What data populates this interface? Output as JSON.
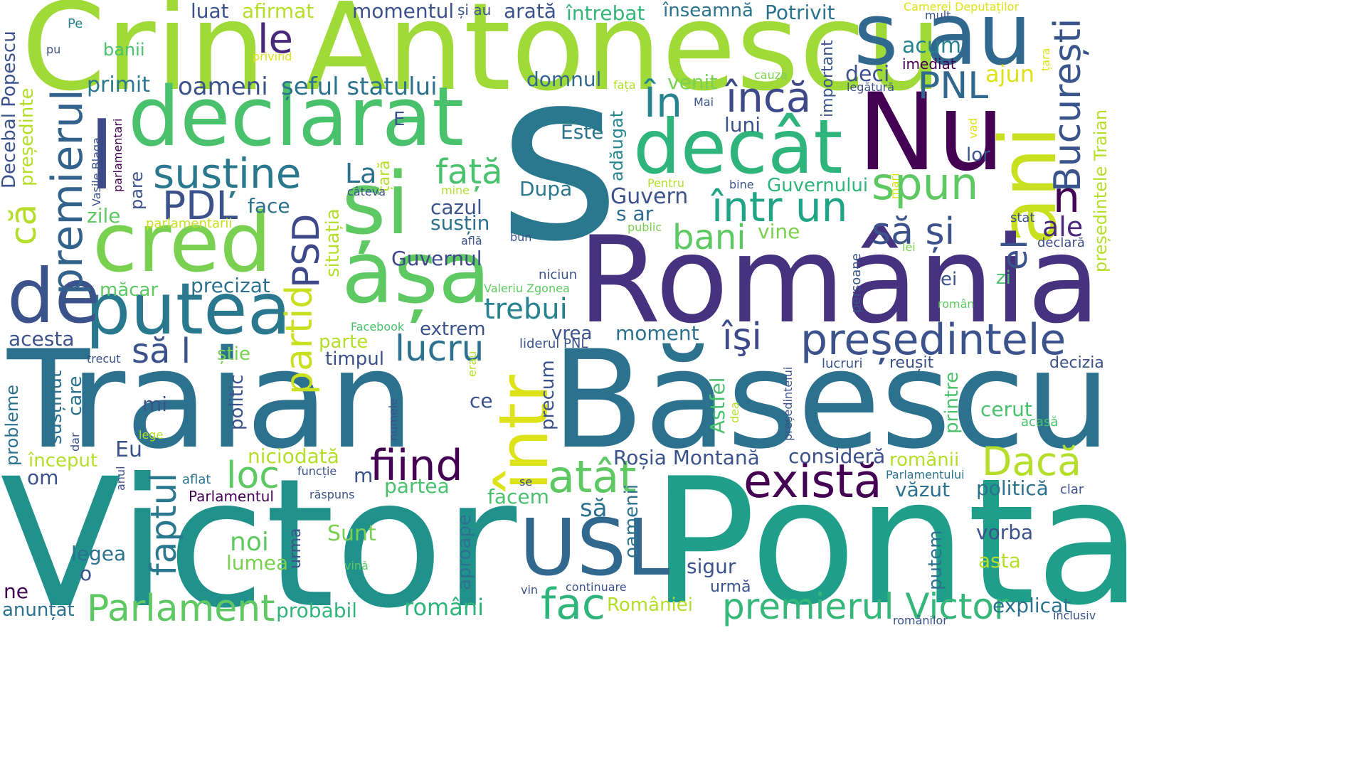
{
  "words": [
    {
      "text": "Crin Antonescu",
      "color": "#a0da39"
    },
    {
      "text": "s",
      "color": "#2a788e"
    },
    {
      "text": "Nu",
      "color": "#440154"
    },
    {
      "text": "s au",
      "color": "#31688e"
    },
    {
      "text": "declarat",
      "color": "#4ac16d"
    },
    {
      "text": "decât",
      "color": "#2fb47c"
    },
    {
      "text": "ani",
      "color": "#c8e020"
    },
    {
      "text": "și",
      "color": "#5ec962"
    },
    {
      "text": "cred",
      "color": "#7ad151"
    },
    {
      "text": "așa",
      "color": "#5ec962"
    },
    {
      "text": "România",
      "color": "#46327e"
    },
    {
      "text": "Traian",
      "color": "#2c728e"
    },
    {
      "text": "Băsescu",
      "color": "#2c728e"
    },
    {
      "text": "Victor",
      "color": "#21918c"
    },
    {
      "text": "Ponta",
      "color": "#1f9e89"
    },
    {
      "text": "putea",
      "color": "#2a788e"
    },
    {
      "text": "de",
      "color": "#3b528b"
    },
    {
      "text": "într",
      "color": "#dde318"
    },
    {
      "text": "USL",
      "color": "#31688e"
    },
    {
      "text": "președintele",
      "color": "#3b528b"
    },
    {
      "text": "premierul",
      "color": "#33638d"
    },
    {
      "text": "susține",
      "color": "#2a788e"
    },
    {
      "text": "spun",
      "color": "#5ec962"
    },
    {
      "text": "Parlament",
      "color": "#5ec962"
    },
    {
      "text": "premierul Victor",
      "color": "#35b779"
    },
    {
      "text": "există",
      "color": "#440154"
    },
    {
      "text": "fiind",
      "color": "#440154"
    },
    {
      "text": "atât",
      "color": "#5ec962"
    },
    {
      "text": "lucru",
      "color": "#2c728e"
    },
    {
      "text": "Dacă",
      "color": "#b5de2b"
    },
    {
      "text": "fac",
      "color": "#2fb47c"
    },
    {
      "text": "într un",
      "color": "#20a486"
    },
    {
      "text": "PNL",
      "color": "#31688e"
    },
    {
      "text": "București",
      "color": "#39558c"
    },
    {
      "text": "le",
      "color": "#482878"
    },
    {
      "text": "l",
      "color": "#3e4989"
    },
    {
      "text": "PDL",
      "color": "#3b528b"
    },
    {
      "text": "că",
      "color": "#b5de2b"
    },
    {
      "text": "În",
      "color": "#25848e"
    },
    {
      "text": "încă",
      "color": "#3e4989"
    },
    {
      "text": "față",
      "color": "#4ac16d"
    },
    {
      "text": "bani",
      "color": "#5ec962"
    },
    {
      "text": "el",
      "color": "#3b528b"
    },
    {
      "text": "n",
      "color": "#440154"
    },
    {
      "text": "să și",
      "color": "#3b528b"
    },
    {
      "text": "trebui",
      "color": "#26828e"
    },
    {
      "text": "partid",
      "color": "#c8e020"
    },
    {
      "text": "PSD",
      "color": "#3e4989"
    },
    {
      "text": "îşi",
      "color": "#3e4989"
    },
    {
      "text": "loc",
      "color": "#5ec962"
    },
    {
      "text": "faptul",
      "color": "#2a788e"
    },
    {
      "text": "să l",
      "color": "#3b528b"
    },
    {
      "text": "ale",
      "color": "#482878"
    },
    {
      "text": "oameni",
      "color": "#3b528b"
    },
    {
      "text": "șeful statului",
      "color": "#2c728e"
    },
    {
      "text": "acum",
      "color": "#26828e"
    },
    {
      "text": "deci",
      "color": "#3b528b"
    },
    {
      "text": "ajun",
      "color": "#dde318"
    },
    {
      "text": "La",
      "color": "#2c728e"
    },
    {
      "text": "Guvern",
      "color": "#3b528b"
    },
    {
      "text": "Guvernul",
      "color": "#3e4989"
    },
    {
      "text": "Guvernului",
      "color": "#2fb47c"
    },
    {
      "text": "Este",
      "color": "#2c728e"
    },
    {
      "text": "venit",
      "color": "#7ad151"
    },
    {
      "text": "luni",
      "color": "#3b528b"
    },
    {
      "text": "lor",
      "color": "#3b528b"
    },
    {
      "text": "După",
      "color": "#2a788e"
    },
    {
      "text": "cazul",
      "color": "#3b528b"
    },
    {
      "text": "susțin",
      "color": "#2c728e"
    },
    {
      "text": "s ar",
      "color": "#31688e"
    },
    {
      "text": "vine",
      "color": "#7ad151"
    },
    {
      "text": "domnul",
      "color": "#31688e"
    },
    {
      "text": "primit",
      "color": "#2a788e"
    },
    {
      "text": "luat",
      "color": "#3b528b"
    },
    {
      "text": "afirmat",
      "color": "#b5de2b"
    },
    {
      "text": "momentul",
      "color": "#3b528b"
    },
    {
      "text": "și au",
      "color": "#3b528b"
    },
    {
      "text": "arată",
      "color": "#3b528b"
    },
    {
      "text": "întrebat",
      "color": "#35b779"
    },
    {
      "text": "înseamnă",
      "color": "#2c728e"
    },
    {
      "text": "Potrivit",
      "color": "#2c728e"
    },
    {
      "text": "Camerei Deputaților",
      "color": "#dde318"
    },
    {
      "text": "mult",
      "color": "#3b528b"
    },
    {
      "text": "imediat",
      "color": "#440154"
    },
    {
      "text": "important",
      "color": "#3b528b"
    },
    {
      "text": "legătură",
      "color": "#3b528b"
    },
    {
      "text": "țara",
      "color": "#dde318"
    },
    {
      "text": "cauza",
      "color": "#7ad151"
    },
    {
      "text": "fața",
      "color": "#b5de2b"
    },
    {
      "text": "Mai",
      "color": "#3b528b"
    },
    {
      "text": "adăugat",
      "color": "#25848e"
    },
    {
      "text": "Pentru",
      "color": "#b5de2b"
    },
    {
      "text": "mine",
      "color": "#b5de2b"
    },
    {
      "text": "bine",
      "color": "#3b528b"
    },
    {
      "text": "mari",
      "color": "#dde318"
    },
    {
      "text": "vad",
      "color": "#dde318"
    },
    {
      "text": "public",
      "color": "#7ad151"
    },
    {
      "text": "stat",
      "color": "#3b528b"
    },
    {
      "text": "lei",
      "color": "#7ad151"
    },
    {
      "text": "declară",
      "color": "#3b528b"
    },
    {
      "text": "președintele Traian",
      "color": "#b5de2b"
    },
    {
      "text": "Pe",
      "color": "#26828e"
    },
    {
      "text": "pu",
      "color": "#3b528b"
    },
    {
      "text": "banii",
      "color": "#4ac16d"
    },
    {
      "text": "privind",
      "color": "#dde318"
    },
    {
      "text": "Decebal Popescu",
      "color": "#3b528b"
    },
    {
      "text": "președinte",
      "color": "#b5de2b"
    },
    {
      "text": "Vasile Blaga",
      "color": "#3b528b"
    },
    {
      "text": "parlamentari",
      "color": "#440154"
    },
    {
      "text": "E",
      "color": "#3b528b"
    },
    {
      "text": "țară",
      "color": "#b5de2b"
    },
    {
      "text": "câteva",
      "color": "#3b528b"
    },
    {
      "text": "pare",
      "color": "#3b528b"
    },
    {
      "text": "zile",
      "color": "#5ec962"
    },
    {
      "text": "face",
      "color": "#2c728e"
    },
    {
      "text": "parlamentarii",
      "color": "#c8e020"
    },
    {
      "text": "bun",
      "color": "#3b528b"
    },
    {
      "text": "află",
      "color": "#3b528b"
    },
    {
      "text": "niciun",
      "color": "#3b528b"
    },
    {
      "text": "Valeriu Zgonea",
      "color": "#5ec962"
    },
    {
      "text": "situația",
      "color": "#b5de2b"
    },
    {
      "text": "măcar",
      "color": "#5ec962"
    },
    {
      "text": "precizat",
      "color": "#2c728e"
    },
    {
      "text": "acesta",
      "color": "#3b528b"
    },
    {
      "text": "Facebook",
      "color": "#4ac16d"
    },
    {
      "text": "extrem",
      "color": "#3b528b"
    },
    {
      "text": "parte",
      "color": "#b5de2b"
    },
    {
      "text": "vrea",
      "color": "#3b528b"
    },
    {
      "text": "moment",
      "color": "#2c728e"
    },
    {
      "text": "liderul PNL",
      "color": "#3b528b"
    },
    {
      "text": "timpul",
      "color": "#3b528b"
    },
    {
      "text": "știe",
      "color": "#7ad151"
    },
    {
      "text": "trecut",
      "color": "#3b528b"
    },
    {
      "text": "erau",
      "color": "#b5de2b"
    },
    {
      "text": "persoane",
      "color": "#3b528b"
    },
    {
      "text": "român",
      "color": "#5ec962"
    },
    {
      "text": "ei",
      "color": "#3b528b"
    },
    {
      "text": "zi",
      "color": "#4ac16d"
    },
    {
      "text": "președintelui",
      "color": "#3b528b"
    },
    {
      "text": "lucruri",
      "color": "#3b528b"
    },
    {
      "text": "reușit",
      "color": "#3b528b"
    },
    {
      "text": "decizia",
      "color": "#3b528b"
    },
    {
      "text": "probleme",
      "color": "#2c728e"
    },
    {
      "text": "susținut",
      "color": "#2c728e"
    },
    {
      "text": "care",
      "color": "#2c728e"
    },
    {
      "text": "politic",
      "color": "#3b528b"
    },
    {
      "text": "mi",
      "color": "#3b528b"
    },
    {
      "text": "ce",
      "color": "#3b528b"
    },
    {
      "text": "precum",
      "color": "#3b528b"
    },
    {
      "text": "Astfel",
      "color": "#4ac16d"
    },
    {
      "text": "dea",
      "color": "#b5de2b"
    },
    {
      "text": "printre",
      "color": "#4ac16d"
    },
    {
      "text": "cerut",
      "color": "#4ac16d"
    },
    {
      "text": "acasă",
      "color": "#4ac16d"
    },
    {
      "text": "început",
      "color": "#b5de2b"
    },
    {
      "text": "Eu",
      "color": "#3b528b"
    },
    {
      "text": "lege",
      "color": "#b5de2b"
    },
    {
      "text": "dar",
      "color": "#3b528b"
    },
    {
      "text": "numele",
      "color": "#3b528b"
    },
    {
      "text": "niciodată",
      "color": "#b5de2b"
    },
    {
      "text": "Roșia Montană",
      "color": "#3b528b"
    },
    {
      "text": "consideră",
      "color": "#3b528b"
    },
    {
      "text": "românii",
      "color": "#b5de2b"
    },
    {
      "text": "om",
      "color": "#3b528b"
    },
    {
      "text": "anul",
      "color": "#3b528b"
    },
    {
      "text": "funcție",
      "color": "#3b528b"
    },
    {
      "text": "aflat",
      "color": "#2c728e"
    },
    {
      "text": "Parlamentul",
      "color": "#440154"
    },
    {
      "text": "m",
      "color": "#3b528b"
    },
    {
      "text": "partea",
      "color": "#4ac16d"
    },
    {
      "text": "se",
      "color": "#3b528b"
    },
    {
      "text": "Parlamentului",
      "color": "#2c728e"
    },
    {
      "text": "clar",
      "color": "#3b528b"
    },
    {
      "text": "văzut",
      "color": "#2c728e"
    },
    {
      "text": "politică",
      "color": "#2c728e"
    },
    {
      "text": "facem",
      "color": "#4ac16d"
    },
    {
      "text": "legea",
      "color": "#2c728e"
    },
    {
      "text": "noi",
      "color": "#5ec962"
    },
    {
      "text": "lumea",
      "color": "#7ad151"
    },
    {
      "text": "răspuns",
      "color": "#3b528b"
    },
    {
      "text": "urma",
      "color": "#3b528b"
    },
    {
      "text": "Sunt",
      "color": "#7ad151"
    },
    {
      "text": "aproape",
      "color": "#2c728e"
    },
    {
      "text": "să",
      "color": "#2c728e"
    },
    {
      "text": "oamenii",
      "color": "#2c728e"
    },
    {
      "text": "vorba",
      "color": "#3b528b"
    },
    {
      "text": "asta",
      "color": "#b5de2b"
    },
    {
      "text": "putem",
      "color": "#2c728e"
    },
    {
      "text": "sigur",
      "color": "#3b528b"
    },
    {
      "text": "urmă",
      "color": "#3b528b"
    },
    {
      "text": "o",
      "color": "#3b528b"
    },
    {
      "text": "vină",
      "color": "#5ec962"
    },
    {
      "text": "vin",
      "color": "#3b528b"
    },
    {
      "text": "continuare",
      "color": "#3b528b"
    },
    {
      "text": "ne",
      "color": "#440154"
    },
    {
      "text": "anunțat",
      "color": "#2c728e"
    },
    {
      "text": "probabil",
      "color": "#2fb47c"
    },
    {
      "text": "români",
      "color": "#2fb47c"
    },
    {
      "text": "României",
      "color": "#b5de2b"
    },
    {
      "text": "explicat",
      "color": "#2c728e"
    },
    {
      "text": "inclusiv",
      "color": "#3b528b"
    },
    {
      "text": "românilor",
      "color": "#3b528b"
    }
  ]
}
